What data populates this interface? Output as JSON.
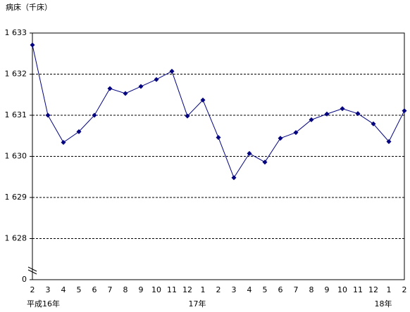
{
  "chart_data": {
    "type": "line",
    "y_axis_label": "病床（千床）",
    "categories": [
      "2",
      "3",
      "4",
      "5",
      "6",
      "7",
      "8",
      "9",
      "10",
      "11",
      "12",
      "1",
      "2",
      "3",
      "4",
      "5",
      "6",
      "7",
      "8",
      "9",
      "10",
      "11",
      "12",
      "1",
      "2"
    ],
    "x_group_labels": [
      {
        "index": 0,
        "label": "平成16年"
      },
      {
        "index": 11,
        "label": "17年"
      },
      {
        "index": 23,
        "label": "18年"
      }
    ],
    "series": [
      {
        "color": "#000080",
        "values": [
          1632.71,
          1631.0,
          1630.34,
          1630.6,
          1631.0,
          1631.65,
          1631.53,
          1631.7,
          1631.87,
          1632.07,
          1630.98,
          1631.37,
          1630.46,
          1629.48,
          1630.07,
          1629.86,
          1630.44,
          1630.58,
          1630.89,
          1631.03,
          1631.16,
          1631.04,
          1630.79,
          1630.36,
          1631.11
        ]
      }
    ],
    "ylim": [
      0,
      1633
    ],
    "y_break": [
      0,
      1627
    ],
    "yticks": [
      0,
      {
        "value": 1628,
        "label": "1 628"
      },
      {
        "value": 1629,
        "label": "1 629"
      },
      {
        "value": 1630,
        "label": "1 630"
      },
      {
        "value": 1631,
        "label": "1 631"
      },
      {
        "value": 1632,
        "label": "1 632"
      },
      {
        "value": 1633,
        "label": "1 633"
      }
    ],
    "grid": true
  }
}
